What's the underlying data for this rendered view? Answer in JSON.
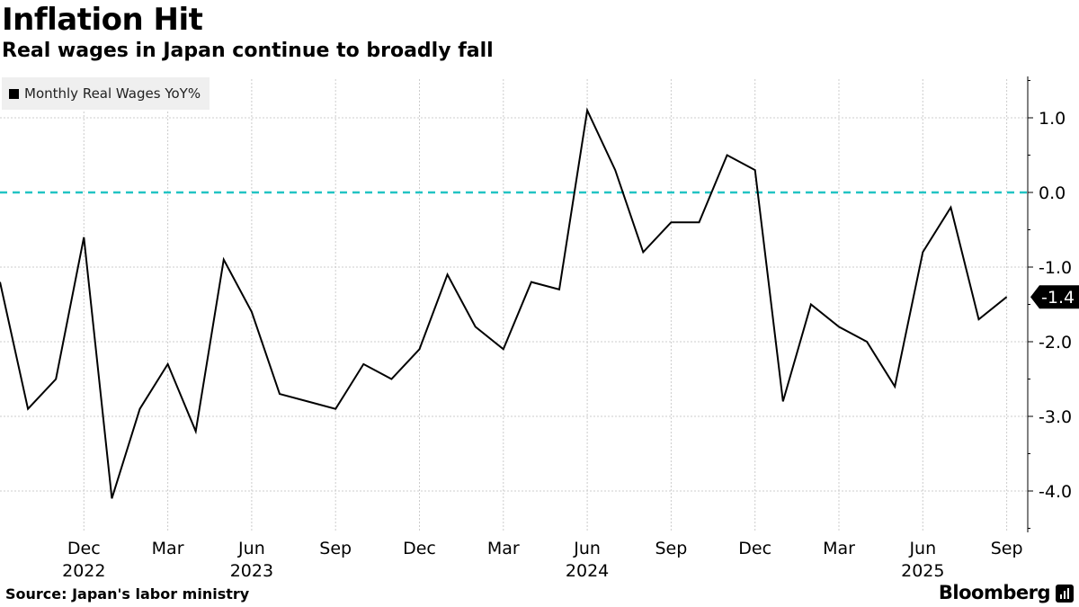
{
  "header": {
    "title": "Inflation Hit",
    "subtitle": "Real wages in Japan continue to broadly fall"
  },
  "footer": {
    "source": "Source: Japan's labor ministry",
    "brand": "Bloomberg"
  },
  "colors": {
    "line": "#000000",
    "zero_line": "#22c4c4",
    "grid": "#cccccc",
    "legend_bg": "#efefef"
  },
  "chart_data": {
    "type": "line",
    "title": "Inflation Hit",
    "subtitle": "Real wages in Japan continue to broadly fall",
    "legend": {
      "position": "top-left"
    },
    "grid": true,
    "y_axis": {
      "side": "right",
      "ylim": [
        -4.5,
        1.6
      ],
      "ticks": [
        1.0,
        0.0,
        -1.0,
        -2.0,
        -3.0,
        -4.0
      ],
      "tick_labels": [
        "1.0",
        "0.0",
        "-1.0",
        "-2.0",
        "-3.0",
        "-4.0"
      ]
    },
    "x_axis": {
      "month_labels": [
        {
          "date": "2022-12",
          "label": "Dec"
        },
        {
          "date": "2023-03",
          "label": "Mar"
        },
        {
          "date": "2023-06",
          "label": "Jun"
        },
        {
          "date": "2023-09",
          "label": "Sep"
        },
        {
          "date": "2023-12",
          "label": "Dec"
        },
        {
          "date": "2024-03",
          "label": "Mar"
        },
        {
          "date": "2024-06",
          "label": "Jun"
        },
        {
          "date": "2024-09",
          "label": "Sep"
        },
        {
          "date": "2024-12",
          "label": "Dec"
        },
        {
          "date": "2025-03",
          "label": "Mar"
        },
        {
          "date": "2025-06",
          "label": "Jun"
        },
        {
          "date": "2025-09",
          "label": "Sep"
        }
      ],
      "year_labels": [
        {
          "date": "2022-12",
          "label": "2022"
        },
        {
          "date": "2023-06",
          "label": "2023"
        },
        {
          "date": "2024-06",
          "label": "2024"
        },
        {
          "date": "2025-06",
          "label": "2025"
        }
      ]
    },
    "reference_lines": [
      {
        "y": 0.0,
        "style": "dashed"
      }
    ],
    "series": [
      {
        "name": "Monthly Real Wages YoY%",
        "x": [
          "2022-09",
          "2022-10",
          "2022-11",
          "2022-12",
          "2023-01",
          "2023-02",
          "2023-03",
          "2023-04",
          "2023-05",
          "2023-06",
          "2023-07",
          "2023-08",
          "2023-09",
          "2023-10",
          "2023-11",
          "2023-12",
          "2024-01",
          "2024-02",
          "2024-03",
          "2024-04",
          "2024-05",
          "2024-06",
          "2024-07",
          "2024-08",
          "2024-09",
          "2024-10",
          "2024-11",
          "2024-12",
          "2025-01",
          "2025-02",
          "2025-03",
          "2025-04",
          "2025-05",
          "2025-06",
          "2025-07",
          "2025-08",
          "2025-09"
        ],
        "values": [
          -1.2,
          -2.9,
          -2.5,
          -0.6,
          -4.1,
          -2.9,
          -2.3,
          -3.2,
          -0.9,
          -1.6,
          -2.7,
          -2.8,
          -2.9,
          -2.3,
          -2.5,
          -2.1,
          -1.1,
          -1.8,
          -2.1,
          -1.2,
          -1.3,
          1.1,
          0.3,
          -0.8,
          -0.4,
          -0.4,
          0.5,
          0.3,
          -2.8,
          -1.5,
          -1.8,
          -2.0,
          -2.6,
          -0.8,
          -0.2,
          -1.7,
          -1.4
        ],
        "last_value_label": "-1.4"
      }
    ]
  }
}
